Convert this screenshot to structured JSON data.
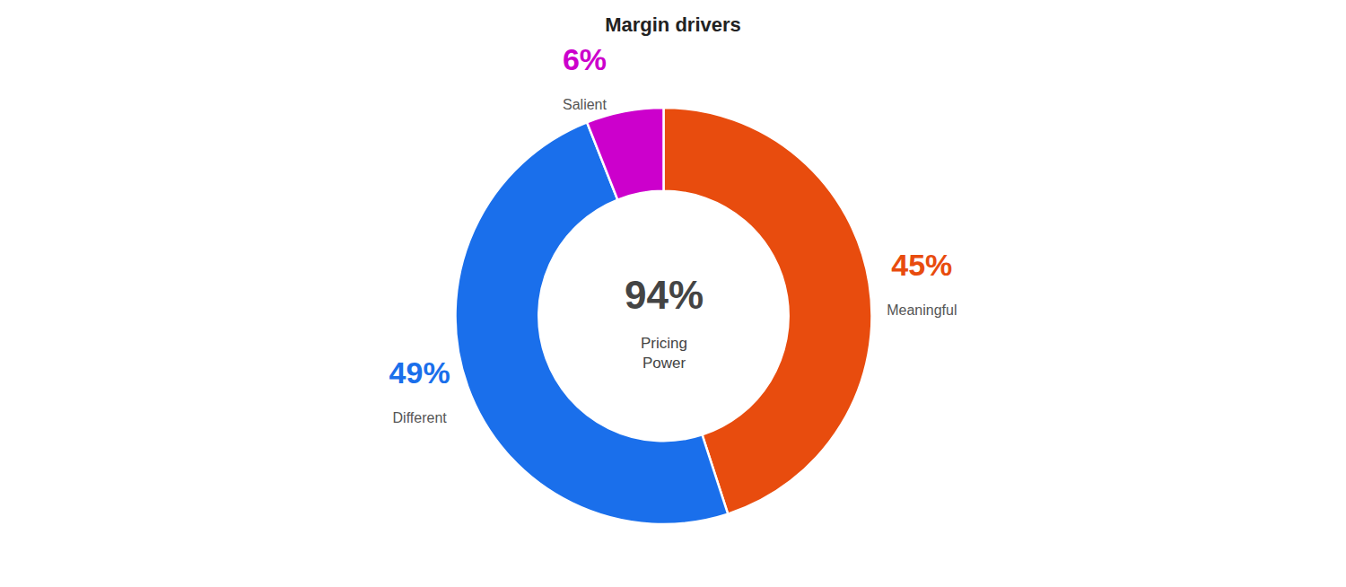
{
  "chart_data": {
    "type": "donut",
    "title": "Margin drivers",
    "categories": [
      "Meaningful",
      "Different",
      "Salient"
    ],
    "values": [
      45,
      49,
      6
    ],
    "value_labels": [
      "45%",
      "49%",
      "6%"
    ],
    "colors": [
      "#E84C0E",
      "#1A6FEB",
      "#CC00CC"
    ],
    "data_labels": true,
    "legend": false,
    "annotations": [
      "94%",
      "Pricing\nPower"
    ]
  }
}
